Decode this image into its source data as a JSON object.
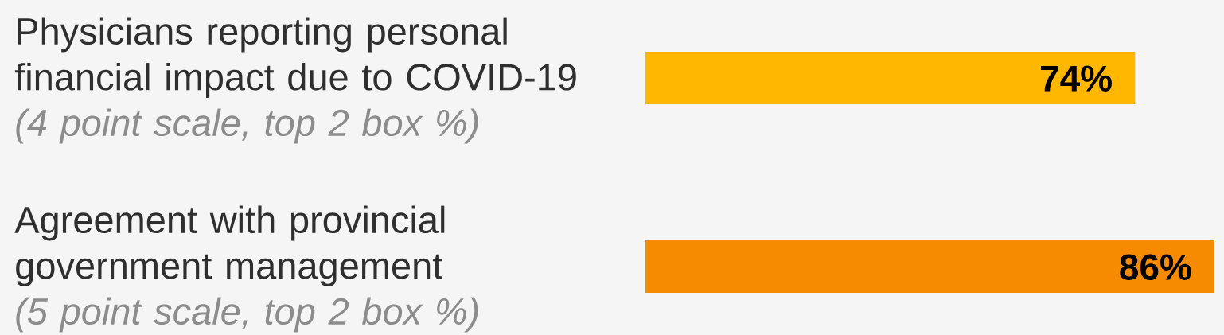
{
  "chart_data": {
    "type": "bar",
    "orientation": "horizontal",
    "categories": [
      "Physicians reporting personal financial impact due to COVID-19",
      "Agreement with provincial government management"
    ],
    "values": [
      74,
      86
    ],
    "colors": [
      "#ffb700",
      "#f68a00"
    ],
    "value_labels": [
      "74%",
      "86%"
    ],
    "annotations": [
      "(4 point scale, top 2 box %)",
      "(5 point scale, top 2 box %)"
    ],
    "tick_labels": "y"
  }
}
